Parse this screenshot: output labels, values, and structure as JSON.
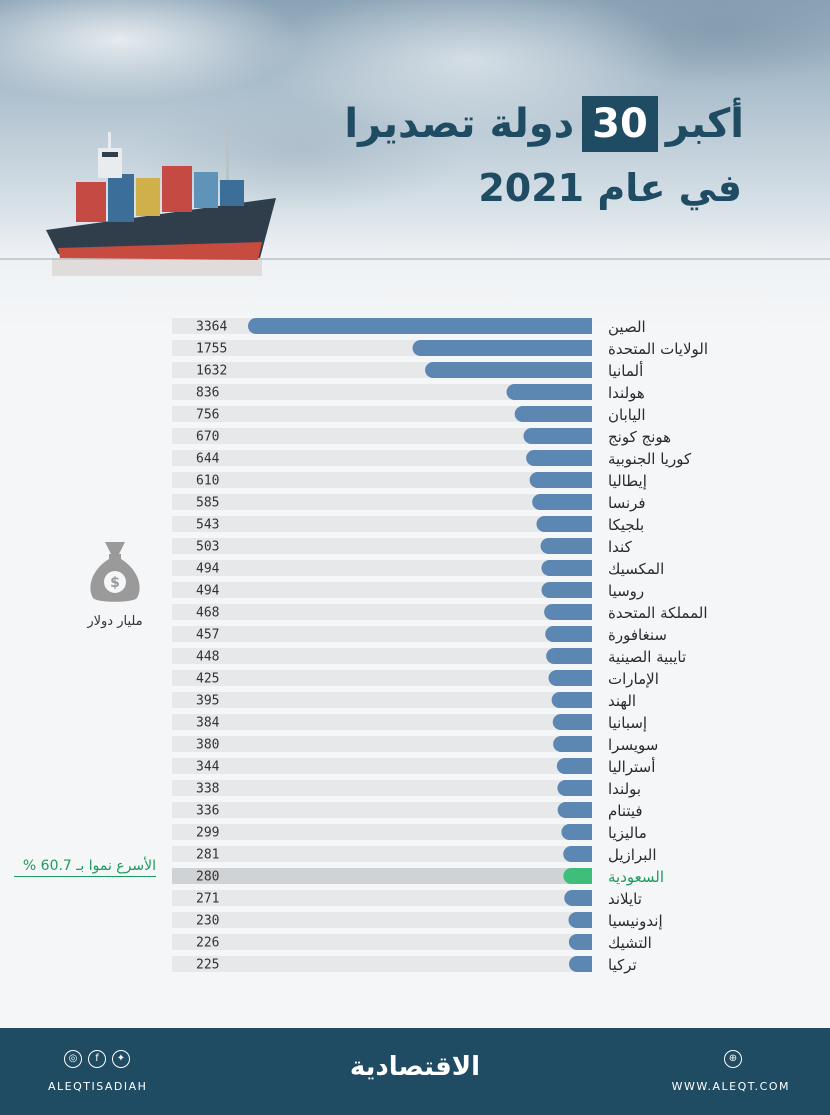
{
  "header": {
    "title_part1": "أكبر",
    "title_number": "30",
    "title_part2": "دولة تصديرا",
    "title_line2": "في عام 2021"
  },
  "unit": {
    "icon": "money-bag-icon",
    "label": "مليار دولار"
  },
  "note": {
    "text": "الأسرع نموا بـ 60.7 %"
  },
  "footer": {
    "handle": "ALEQTISADIAH",
    "brand": "الاقتصادية",
    "website": "WWW.ALEQT.COM",
    "social_icons": [
      "instagram-icon",
      "facebook-icon",
      "twitter-icon"
    ],
    "web_icon": "globe-icon"
  },
  "colors": {
    "bar": "#5b87b2",
    "highlight_bar": "#3fbd7a",
    "track": "#e6e8ea",
    "highlight_track": "#cfd3d6",
    "dark_blue": "#1f4b63"
  },
  "chart_data": {
    "type": "bar",
    "orientation": "horizontal",
    "categories": [
      "الصين",
      "الولايات المتحدة",
      "ألمانيا",
      "هولندا",
      "اليابان",
      "هونج كونج",
      "كوريا الجنوبية",
      "إيطاليا",
      "فرنسا",
      "بلجيكا",
      "كندا",
      "المكسيك",
      "روسيا",
      "المملكة المتحدة",
      "سنغافورة",
      "تايبية الصينية",
      "الإمارات",
      "الهند",
      "إسبانيا",
      "سويسرا",
      "أستراليا",
      "بولندا",
      "فيتنام",
      "ماليزيا",
      "البرازيل",
      "السعودية",
      "تايلاند",
      "إندونيسيا",
      "التشيك",
      "تركيا"
    ],
    "values": [
      3364,
      1755,
      1632,
      836,
      756,
      670,
      644,
      610,
      585,
      543,
      503,
      494,
      494,
      468,
      457,
      448,
      425,
      395,
      384,
      380,
      344,
      338,
      336,
      299,
      281,
      280,
      271,
      230,
      226,
      225
    ],
    "highlight": "السعودية",
    "xlim": [
      0,
      3700
    ]
  }
}
